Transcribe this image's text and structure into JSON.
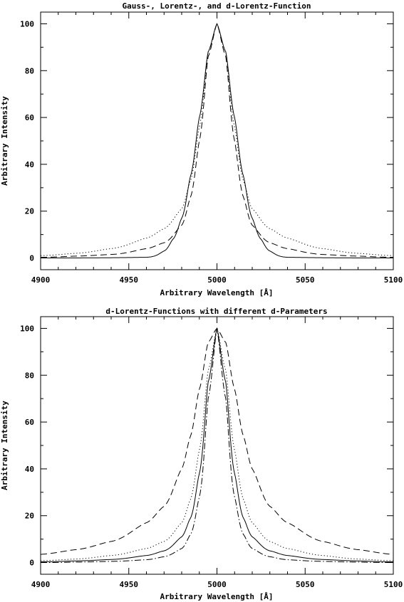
{
  "chart_data": [
    {
      "type": "line",
      "title": "Gauss-, Lorentz-, and d-Lorentz-Function",
      "xlabel": "Arbitrary Wavelength [Å]",
      "ylabel": "Arbitrary Intensity",
      "xlim": [
        4900,
        5100
      ],
      "ylim": [
        -5,
        105
      ],
      "x_ticks": [
        4900,
        4950,
        5000,
        5050,
        5100
      ],
      "y_ticks": [
        0,
        20,
        40,
        60,
        80,
        100
      ],
      "grid": false,
      "legend": "none",
      "series": [
        {
          "style": "solid",
          "x": [
            4900,
            4960,
            4970,
            4975,
            4980,
            4985,
            4990,
            4995,
            5000,
            5005,
            5010,
            5015,
            5020,
            5025,
            5030,
            5040,
            5100
          ],
          "y": [
            0,
            0.3,
            3,
            8,
            17,
            35,
            60,
            88,
            100,
            88,
            60,
            35,
            17,
            8,
            3,
            0.3,
            0
          ]
        },
        {
          "style": "dashed",
          "x": [
            4900,
            4920,
            4940,
            4960,
            4970,
            4980,
            4985,
            4990,
            4995,
            5000,
            5005,
            5010,
            5015,
            5020,
            5030,
            5040,
            5060,
            5080,
            5100
          ],
          "y": [
            0.3,
            0.8,
            1.5,
            4,
            6.5,
            14,
            26,
            50,
            86,
            100,
            86,
            50,
            26,
            14,
            6.5,
            4,
            1.5,
            0.8,
            0.3
          ]
        },
        {
          "style": "dotted",
          "x": [
            4900,
            4920,
            4940,
            4960,
            4970,
            4980,
            4985,
            4990,
            4995,
            5000,
            5005,
            5010,
            5015,
            5020,
            5030,
            5040,
            5060,
            5080,
            5100
          ],
          "y": [
            1,
            2,
            4,
            8.5,
            12.5,
            21,
            33,
            56,
            88,
            100,
            88,
            56,
            33,
            21,
            12.5,
            8.5,
            4,
            2,
            1
          ]
        }
      ]
    },
    {
      "type": "line",
      "title": "d-Lorentz-Functions with different d-Parameters",
      "xlabel": "Arbitrary Wavelength [Å]",
      "ylabel": "Arbitrary Intensity",
      "xlim": [
        4900,
        5100
      ],
      "ylim": [
        -5,
        105
      ],
      "x_ticks": [
        4900,
        4950,
        5000,
        5050,
        5100
      ],
      "y_ticks": [
        0,
        20,
        40,
        60,
        80,
        100
      ],
      "grid": false,
      "legend": "none",
      "series": [
        {
          "style": "dashed",
          "x": [
            4900,
            4920,
            4940,
            4960,
            4970,
            4980,
            4985,
            4990,
            4995,
            5000,
            5005,
            5010,
            5015,
            5020,
            5030,
            5040,
            5060,
            5080,
            5100
          ],
          "y": [
            3.5,
            5.5,
            9,
            17,
            24,
            40,
            54,
            74,
            94,
            100,
            94,
            74,
            54,
            40,
            24,
            17,
            9,
            5.5,
            3.5
          ]
        },
        {
          "style": "dotted",
          "x": [
            4900,
            4920,
            4940,
            4960,
            4970,
            4980,
            4985,
            4990,
            4995,
            5000,
            5005,
            5010,
            5015,
            5020,
            5030,
            5040,
            5060,
            5080,
            5100
          ],
          "y": [
            0.8,
            1.5,
            3,
            6,
            9,
            17,
            27,
            48,
            82,
            100,
            82,
            48,
            27,
            17,
            9,
            6,
            3,
            1.5,
            0.8
          ]
        },
        {
          "style": "solid",
          "x": [
            4900,
            4920,
            4940,
            4960,
            4970,
            4980,
            4985,
            4990,
            4995,
            5000,
            5005,
            5010,
            5015,
            5020,
            5030,
            5040,
            5060,
            5080,
            5100
          ],
          "y": [
            0.3,
            0.7,
            1.3,
            3,
            5,
            11,
            19,
            38,
            77,
            100,
            77,
            38,
            19,
            11,
            5,
            3,
            1.3,
            0.7,
            0.3
          ]
        },
        {
          "style": "dashdot",
          "x": [
            4900,
            4920,
            4940,
            4960,
            4970,
            4980,
            4985,
            4990,
            4995,
            5000,
            5005,
            5010,
            5015,
            5020,
            5030,
            5040,
            5060,
            5080,
            5100
          ],
          "y": [
            0,
            0.2,
            0.5,
            1.2,
            2.5,
            6,
            12,
            28,
            70,
            100,
            70,
            28,
            12,
            6,
            2.5,
            1.2,
            0.5,
            0.2,
            0
          ]
        }
      ]
    }
  ]
}
